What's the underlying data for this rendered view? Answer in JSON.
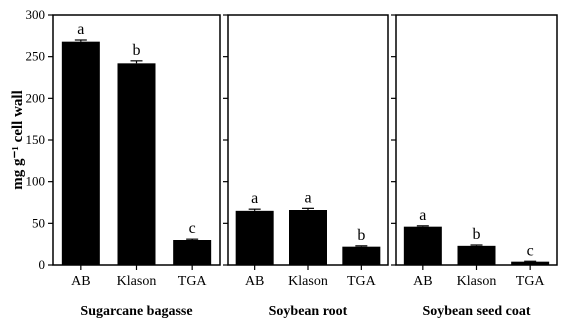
{
  "chart_data": [
    {
      "type": "bar",
      "title": "Sugarcane bagasse",
      "categories": [
        "AB",
        "Klason",
        "TGA"
      ],
      "values": [
        268,
        242,
        30
      ],
      "errors": [
        2,
        3,
        1
      ],
      "significance": [
        "a",
        "b",
        "c"
      ],
      "ylim": [
        0,
        300
      ],
      "yticks": [
        "0",
        "50",
        "100",
        "150",
        "200",
        "250",
        "300"
      ],
      "ylabel": "mg g⁻¹ cell wall"
    },
    {
      "type": "bar",
      "title": "Soybean root",
      "categories": [
        "AB",
        "Klason",
        "TGA"
      ],
      "values": [
        65,
        66,
        22
      ],
      "errors": [
        2,
        2,
        1
      ],
      "significance": [
        "a",
        "a",
        "b"
      ],
      "ylim": [
        0,
        300
      ]
    },
    {
      "type": "bar",
      "title": "Soybean seed coat",
      "categories": [
        "AB",
        "Klason",
        "TGA"
      ],
      "values": [
        46,
        23,
        4
      ],
      "errors": [
        1,
        1,
        0.5
      ],
      "significance": [
        "a",
        "b",
        "c"
      ],
      "ylim": [
        0,
        300
      ]
    }
  ],
  "colors": {
    "bar": "#000000",
    "axis": "#000000"
  }
}
